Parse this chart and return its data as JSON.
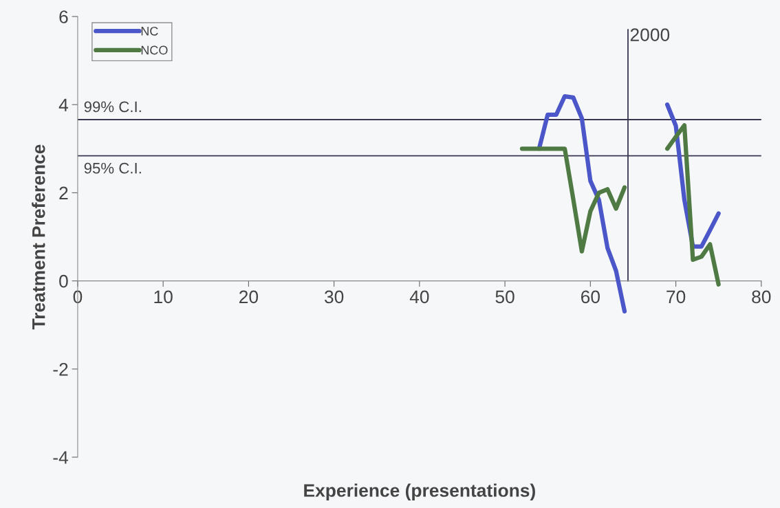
{
  "chart_data": {
    "type": "line",
    "xlabel": "Experience (presentations)",
    "ylabel": "Treatment Preference",
    "xlim": [
      0,
      80
    ],
    "xticks": [
      0,
      10,
      20,
      30,
      40,
      50,
      60,
      70,
      80
    ],
    "ylim": [
      -4,
      6
    ],
    "yticks": [
      -4,
      -2,
      0,
      2,
      4,
      6
    ],
    "series": [
      {
        "name": "NC",
        "color": "#4b57c8",
        "x": [
          54,
          55,
          56,
          57,
          58,
          59,
          60,
          61,
          62,
          63,
          64,
          65,
          66,
          67,
          68,
          69,
          70,
          71,
          72,
          73,
          74,
          75
        ],
        "values": [
          3.0,
          3.77,
          3.77,
          4.19,
          4.16,
          3.69,
          2.27,
          1.84,
          0.75,
          0.23,
          -0.69,
          null,
          null,
          null,
          null,
          4.0,
          3.52,
          1.84,
          0.78,
          0.78,
          1.15,
          1.53
        ]
      },
      {
        "name": "NCO",
        "color": "#4f7a44",
        "x": [
          52,
          53,
          54,
          55,
          56,
          57,
          58,
          59,
          60,
          61,
          62,
          63,
          64,
          65,
          66,
          67,
          68,
          69,
          70,
          71,
          72,
          73,
          74,
          75
        ],
        "values": [
          3.0,
          3.0,
          3.0,
          3.0,
          3.0,
          3.0,
          1.85,
          0.67,
          1.58,
          2.0,
          2.08,
          1.64,
          2.12,
          null,
          null,
          null,
          null,
          3.0,
          3.27,
          3.53,
          0.48,
          0.55,
          0.83,
          -0.08
        ]
      }
    ],
    "ref_lines": [
      {
        "axis": "y",
        "value": 3.66,
        "label": "99% C.I.",
        "color": "#3a3550"
      },
      {
        "axis": "y",
        "value": 2.84,
        "label": "95% C.I.",
        "color": "#3a3550"
      },
      {
        "axis": "x",
        "value": 64.4,
        "color": "#3a3550"
      }
    ],
    "annotations": [
      {
        "text": "2000",
        "x": 64.4,
        "y": 5.55
      }
    ],
    "legend": "top left",
    "grid": false,
    "marker": "none",
    "line_style": "solid"
  }
}
